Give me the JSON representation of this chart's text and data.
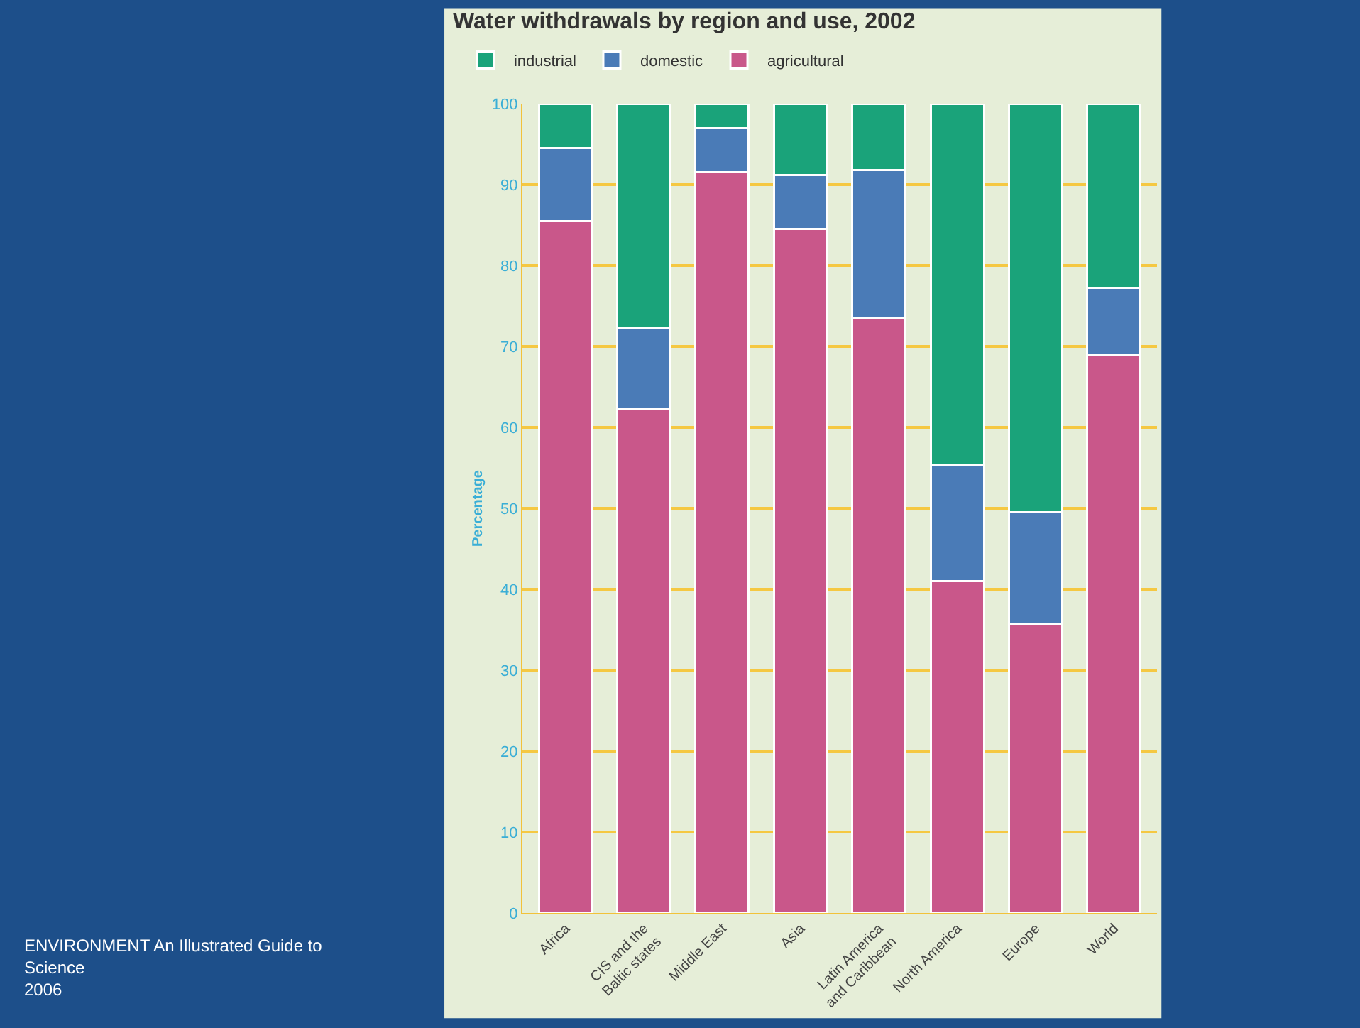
{
  "chart_data": {
    "type": "bar",
    "title": "Water withdrawals by region and use, 2002",
    "ylabel": "Percentage",
    "categories": [
      "Africa",
      "CIS and the\nBaltic states",
      "Middle East",
      "Asia",
      "Latin America\nand Caribbean",
      "North America",
      "Europe",
      "World"
    ],
    "series": [
      {
        "name": "agricultural",
        "color": "#c9578a",
        "values": [
          85.5,
          62.3,
          91.5,
          84.5,
          73.5,
          41,
          35.7,
          69
        ]
      },
      {
        "name": "domestic",
        "color": "#4a7bb7",
        "values": [
          9,
          9.9,
          5.5,
          6.7,
          18.3,
          14.3,
          13.8,
          8.2
        ]
      },
      {
        "name": "industrial",
        "color": "#1aa37a",
        "values": [
          5.5,
          27.8,
          3,
          8.8,
          8.2,
          44.7,
          50.5,
          22.8
        ]
      }
    ],
    "stacked": true,
    "ylim": [
      0,
      100
    ],
    "yticks": [
      0,
      10,
      20,
      30,
      40,
      50,
      60,
      70,
      80,
      90,
      100
    ],
    "grid": "y",
    "legend": "top",
    "annotations": [
      "ENVIRONMENT An Illustrated Guide to\nScience\n2006"
    ]
  }
}
